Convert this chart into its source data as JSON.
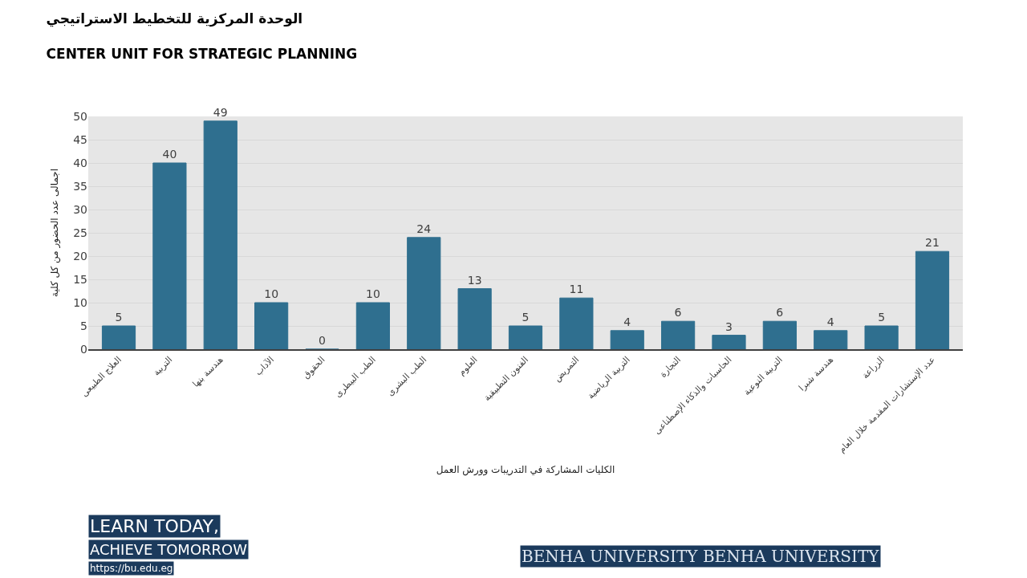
{
  "chart_data": {
    "type": "bar",
    "title": "الوحدة المركزية للتخطيط الاستراتيجي",
    "subtitle": "CENTER UNIT FOR STRATEGIC PLANNING",
    "xlabel": "الكليات المشاركة في التدريبات وورش العمل",
    "ylabel": "اجمالى عدد الحضور من كل كلية",
    "categories": [
      "العلاج الطبيعى",
      "التربية",
      "هندسة بنها",
      "الآداب",
      "الحقوق",
      "الطب البيطرى",
      "الطب البشرى",
      "العلوم",
      "الفنون التطبيقية",
      "التمريض",
      "التربية الرياضية",
      "التجارة",
      "الحاسبات والذكاء الإصطناعى",
      "التربية النوعية",
      "هندسة شبرا",
      "الزراعة",
      "عدد الإستشارات المقدمة خلال العام"
    ],
    "values": [
      5,
      40,
      49,
      10,
      0,
      10,
      24,
      13,
      5,
      11,
      4,
      6,
      3,
      6,
      4,
      5,
      21
    ],
    "color": "#2f6f8f",
    "ylim": [
      0,
      50
    ],
    "yticks": [
      0,
      5,
      10,
      15,
      20,
      25,
      30,
      35,
      40,
      45,
      50
    ],
    "grid": "y",
    "data_labels": true,
    "annotations": [
      "LEARN TODAY,",
      "ACHIEVE TOMORROW",
      "https://bu.edu.eg",
      "BENHA UNIVERSITY BENHA UNIVERSITY"
    ]
  }
}
